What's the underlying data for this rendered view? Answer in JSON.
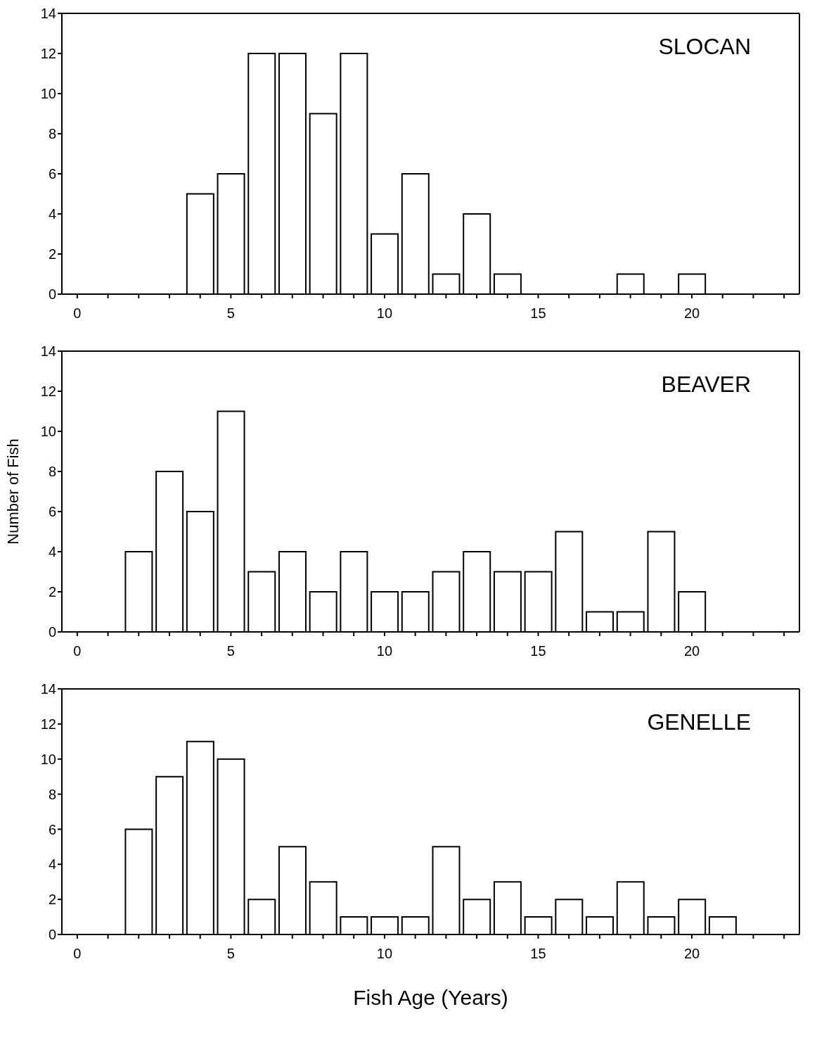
{
  "chart_data": [
    {
      "type": "bar",
      "title": "SLOCAN",
      "x": [
        4,
        5,
        6,
        7,
        8,
        9,
        10,
        11,
        12,
        13,
        14,
        18,
        20
      ],
      "values": [
        5,
        6,
        12,
        12,
        9,
        12,
        3,
        6,
        1,
        4,
        1,
        1,
        1
      ],
      "color": "#ffffff",
      "xlim": [
        -0.5,
        23.5
      ],
      "xticks": [
        0,
        {
          "value": 1,
          "label": null
        },
        {
          "value": 2,
          "label": null
        },
        {
          "value": 3,
          "label": null
        },
        {
          "value": 4,
          "label": null
        },
        5,
        {
          "value": 6,
          "label": null
        },
        {
          "value": 7,
          "label": null
        },
        {
          "value": 8,
          "label": null
        },
        {
          "value": 9,
          "label": null
        },
        10,
        {
          "value": 11,
          "label": null
        },
        {
          "value": 12,
          "label": null
        },
        {
          "value": 13,
          "label": null
        },
        {
          "value": 14,
          "label": null
        },
        15,
        {
          "value": 16,
          "label": null
        },
        {
          "value": 17,
          "label": null
        },
        {
          "value": 18,
          "label": null
        },
        {
          "value": 19,
          "label": null
        },
        20,
        {
          "value": 21,
          "label": null
        },
        {
          "value": 22,
          "label": null
        },
        {
          "value": 23,
          "label": null
        }
      ],
      "ylim": [
        0,
        14
      ],
      "yticks": [
        0,
        2,
        4,
        6,
        8,
        10,
        12,
        14
      ],
      "grid": false,
      "legend": false
    },
    {
      "type": "bar",
      "title": "BEAVER",
      "ylabel": "Number of Fish",
      "x": [
        2,
        3,
        4,
        5,
        6,
        7,
        8,
        9,
        10,
        11,
        12,
        13,
        14,
        15,
        16,
        17,
        18,
        19,
        20
      ],
      "values": [
        4,
        8,
        6,
        11,
        3,
        4,
        2,
        4,
        2,
        2,
        3,
        4,
        3,
        3,
        5,
        1,
        1,
        5,
        2
      ],
      "color": "#ffffff",
      "xlim": [
        -0.5,
        23.5
      ],
      "xticks": [
        0,
        {
          "value": 1,
          "label": null
        },
        {
          "value": 2,
          "label": null
        },
        {
          "value": 3,
          "label": null
        },
        {
          "value": 4,
          "label": null
        },
        5,
        {
          "value": 6,
          "label": null
        },
        {
          "value": 7,
          "label": null
        },
        {
          "value": 8,
          "label": null
        },
        {
          "value": 9,
          "label": null
        },
        10,
        {
          "value": 11,
          "label": null
        },
        {
          "value": 12,
          "label": null
        },
        {
          "value": 13,
          "label": null
        },
        {
          "value": 14,
          "label": null
        },
        15,
        {
          "value": 16,
          "label": null
        },
        {
          "value": 17,
          "label": null
        },
        {
          "value": 18,
          "label": null
        },
        {
          "value": 19,
          "label": null
        },
        20,
        {
          "value": 21,
          "label": null
        },
        {
          "value": 22,
          "label": null
        },
        {
          "value": 23,
          "label": null
        }
      ],
      "ylim": [
        0,
        14
      ],
      "yticks": [
        0,
        2,
        4,
        6,
        8,
        10,
        12,
        14
      ],
      "grid": false,
      "legend": false
    },
    {
      "type": "bar",
      "title": "GENELLE",
      "xlabel": "Fish Age (Years)",
      "x": [
        2,
        3,
        4,
        5,
        6,
        7,
        8,
        9,
        10,
        11,
        12,
        13,
        14,
        15,
        16,
        17,
        18,
        19,
        20,
        21
      ],
      "values": [
        6,
        9,
        11,
        10,
        2,
        5,
        3,
        1,
        1,
        1,
        5,
        2,
        3,
        1,
        2,
        1,
        3,
        1,
        2,
        1
      ],
      "color": "#ffffff",
      "xlim": [
        -0.5,
        23.5
      ],
      "xticks": [
        0,
        {
          "value": 1,
          "label": null
        },
        {
          "value": 2,
          "label": null
        },
        {
          "value": 3,
          "label": null
        },
        {
          "value": 4,
          "label": null
        },
        5,
        {
          "value": 6,
          "label": null
        },
        {
          "value": 7,
          "label": null
        },
        {
          "value": 8,
          "label": null
        },
        {
          "value": 9,
          "label": null
        },
        10,
        {
          "value": 11,
          "label": null
        },
        {
          "value": 12,
          "label": null
        },
        {
          "value": 13,
          "label": null
        },
        {
          "value": 14,
          "label": null
        },
        15,
        {
          "value": 16,
          "label": null
        },
        {
          "value": 17,
          "label": null
        },
        {
          "value": 18,
          "label": null
        },
        {
          "value": 19,
          "label": null
        },
        20,
        {
          "value": 21,
          "label": null
        },
        {
          "value": 22,
          "label": null
        },
        {
          "value": 23,
          "label": null
        }
      ],
      "ylim": [
        0,
        14
      ],
      "yticks": [
        0,
        2,
        4,
        6,
        8,
        10,
        12,
        14
      ],
      "grid": false,
      "legend": false
    }
  ]
}
